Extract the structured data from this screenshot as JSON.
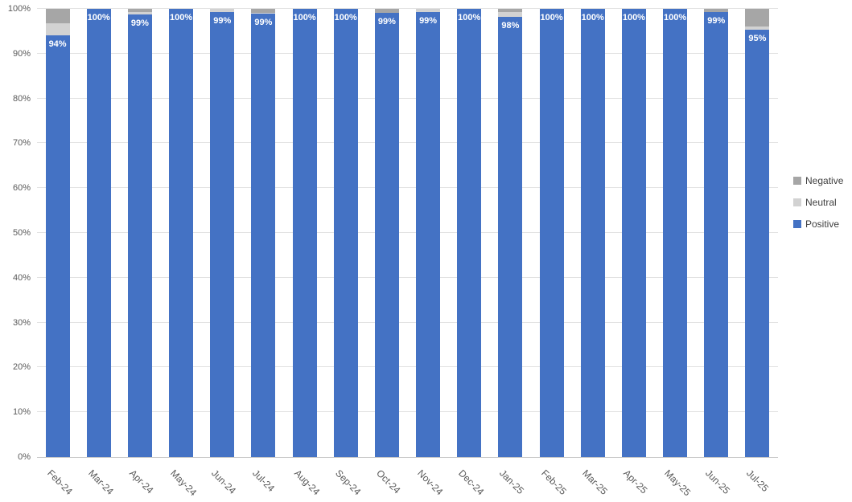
{
  "chart_data": {
    "type": "bar",
    "subtype": "stacked-100-percent-column",
    "title": "",
    "categories": [
      "Feb-24",
      "Mar-24",
      "Apr-24",
      "May-24",
      "Jun-24",
      "Jul-24",
      "Aug-24",
      "Sep-24",
      "Oct-24",
      "Nov-24",
      "Dec-24",
      "Jan-25",
      "Feb-25",
      "Mar-25",
      "Apr-25",
      "May-25",
      "Jun-25",
      "Jul-25"
    ],
    "series": [
      {
        "name": "Positive",
        "color": "#4472C4",
        "values": [
          94.0,
          100,
          98.7,
          100,
          99.3,
          98.9,
          100,
          100,
          99.1,
          99.2,
          100,
          98.2,
          100,
          100,
          100,
          100,
          99.3,
          95.4
        ],
        "data_labels": [
          "94%",
          "100%",
          "99%",
          "100%",
          "99%",
          "99%",
          "100%",
          "100%",
          "99%",
          "99%",
          "100%",
          "98%",
          "100%",
          "100%",
          "100%",
          "100%",
          "99%",
          "95%"
        ]
      },
      {
        "name": "Neutral",
        "color": "#D2D2D2",
        "values": [
          2.7,
          0,
          0.5,
          0,
          0.7,
          0.2,
          0,
          0,
          0,
          0.8,
          0,
          1.0,
          0,
          0,
          0,
          0,
          0,
          0.6
        ],
        "data_labels": []
      },
      {
        "name": "Negative",
        "color": "#A6A6A6",
        "values": [
          3.3,
          0,
          0.8,
          0,
          0,
          0.9,
          0,
          0,
          0.9,
          0,
          0,
          0.8,
          0,
          0,
          0,
          0,
          0.7,
          4.0
        ],
        "data_labels": []
      }
    ],
    "stack_order_bottom_to_top": [
      "Positive",
      "Neutral",
      "Negative"
    ],
    "y_axis": {
      "min": 0,
      "max": 100,
      "step": 10,
      "tick_labels": [
        "0%",
        "10%",
        "20%",
        "30%",
        "40%",
        "50%",
        "60%",
        "70%",
        "80%",
        "90%",
        "100%"
      ],
      "format": "percent"
    },
    "x_axis": {
      "label_rotation_deg": 45
    },
    "legend": {
      "position": "right",
      "entries": [
        {
          "label": "Negative",
          "color": "#A6A6A6"
        },
        {
          "label": "Neutral",
          "color": "#D2D2D2"
        },
        {
          "label": "Positive",
          "color": "#4472C4"
        }
      ]
    },
    "gridlines": {
      "show": true,
      "color": "#E2E2E2"
    },
    "colors": {
      "background": "#FFFFFF",
      "axis_line": "#C6C6C6",
      "axis_text": "#595959",
      "legend_text": "#404040",
      "data_label_text": "#FFFFFF"
    }
  }
}
